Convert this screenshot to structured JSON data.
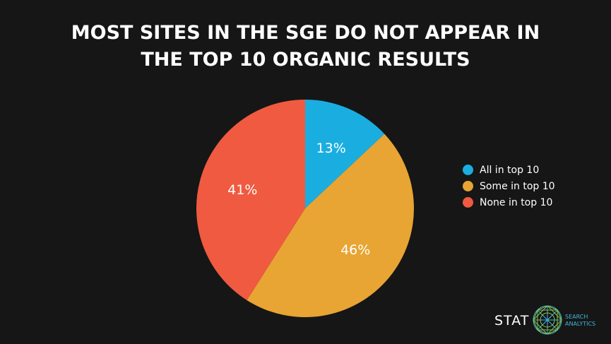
{
  "title_lines": [
    "MOST SITES IN THE SGE DO NOT APPEAR IN",
    "THE TOP 10 ORGANIC RESULTS"
  ],
  "chart_data": {
    "type": "pie",
    "title": "MOST SITES IN THE SGE DO NOT APPEAR IN THE TOP 10 ORGANIC RESULTS",
    "slices": [
      {
        "label": "All in top 10",
        "value": 13,
        "display": "13%",
        "color": "#1aaee0"
      },
      {
        "label": "Some in top 10",
        "value": 46,
        "display": "46%",
        "color": "#e8a533"
      },
      {
        "label": "None in top 10",
        "value": 41,
        "display": "41%",
        "color": "#f05a40"
      }
    ],
    "legend_placement": "right"
  },
  "legend": {
    "items": [
      {
        "label": "All in top 10",
        "color": "#1aaee0"
      },
      {
        "label": "Some in top 10",
        "color": "#e8a533"
      },
      {
        "label": "None in top 10",
        "color": "#f05a40"
      }
    ]
  },
  "brand": {
    "name": "STAT",
    "sub_line1": "SEARCH",
    "sub_line2": "ANALYTICS",
    "icon": "stat-globe-logo",
    "accent": "#3fb7d9",
    "logo_color": "#8bc34a"
  }
}
